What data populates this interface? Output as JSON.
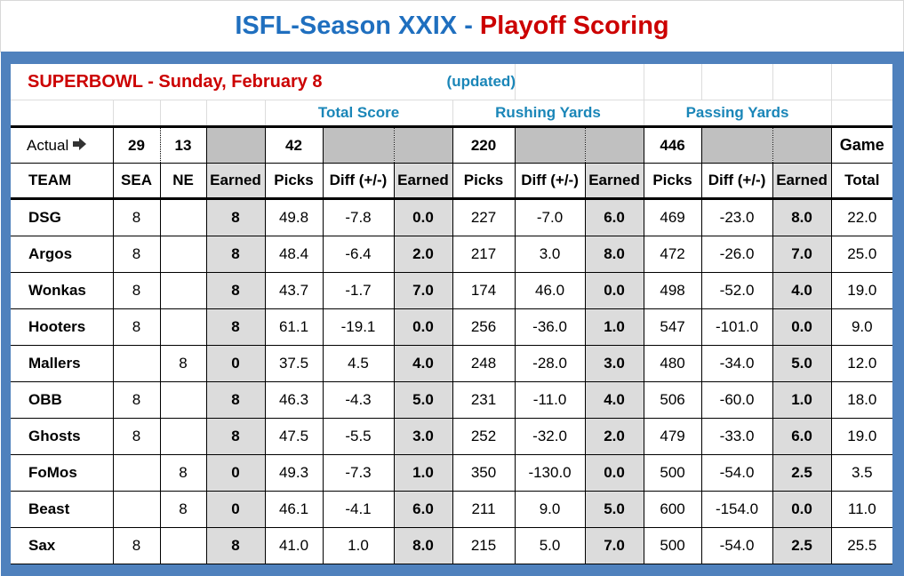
{
  "title": {
    "part1": "ISFL-Season XXIX - ",
    "part2": "Playoff Scoring"
  },
  "superbowl": "SUPERBOWL - Sunday, February 8",
  "updated": "(updated)",
  "groups": {
    "total_score": "Total Score",
    "rushing": "Rushing Yards",
    "passing": "Passing Yards"
  },
  "actual": {
    "label": "Actual",
    "sea": "29",
    "ne": "13",
    "total": "42",
    "rushing": "220",
    "passing": "446",
    "game": "Game"
  },
  "headers": [
    "TEAM",
    "SEA",
    "NE",
    "Earned",
    "Picks",
    "Diff (+/-)",
    "Earned",
    "Picks",
    "Diff (+/-)",
    "Earned",
    "Picks",
    "Diff (+/-)",
    "Earned",
    "Total"
  ],
  "rows": [
    [
      "DSG",
      "8",
      "",
      "8",
      "49.8",
      "-7.8",
      "0.0",
      "227",
      "-7.0",
      "6.0",
      "469",
      "-23.0",
      "8.0",
      "22.0"
    ],
    [
      "Argos",
      "8",
      "",
      "8",
      "48.4",
      "-6.4",
      "2.0",
      "217",
      "3.0",
      "8.0",
      "472",
      "-26.0",
      "7.0",
      "25.0"
    ],
    [
      "Wonkas",
      "8",
      "",
      "8",
      "43.7",
      "-1.7",
      "7.0",
      "174",
      "46.0",
      "0.0",
      "498",
      "-52.0",
      "4.0",
      "19.0"
    ],
    [
      "Hooters",
      "8",
      "",
      "8",
      "61.1",
      "-19.1",
      "0.0",
      "256",
      "-36.0",
      "1.0",
      "547",
      "-101.0",
      "0.0",
      "9.0"
    ],
    [
      "Mallers",
      "",
      "8",
      "0",
      "37.5",
      "4.5",
      "4.0",
      "248",
      "-28.0",
      "3.0",
      "480",
      "-34.0",
      "5.0",
      "12.0"
    ],
    [
      "OBB",
      "8",
      "",
      "8",
      "46.3",
      "-4.3",
      "5.0",
      "231",
      "-11.0",
      "4.0",
      "506",
      "-60.0",
      "1.0",
      "18.0"
    ],
    [
      "Ghosts",
      "8",
      "",
      "8",
      "47.5",
      "-5.5",
      "3.0",
      "252",
      "-32.0",
      "2.0",
      "479",
      "-33.0",
      "6.0",
      "19.0"
    ],
    [
      "FoMos",
      "",
      "8",
      "0",
      "49.3",
      "-7.3",
      "1.0",
      "350",
      "-130.0",
      "0.0",
      "500",
      "-54.0",
      "2.5",
      "3.5"
    ],
    [
      "Beast",
      "",
      "8",
      "0",
      "46.1",
      "-4.1",
      "6.0",
      "211",
      "9.0",
      "5.0",
      "600",
      "-154.0",
      "0.0",
      "11.0"
    ],
    [
      "Sax",
      "8",
      "",
      "8",
      "41.0",
      "1.0",
      "8.0",
      "215",
      "5.0",
      "7.0",
      "500",
      "-54.0",
      "2.5",
      "25.5"
    ]
  ],
  "colors": {
    "frame": "#4f81bd",
    "title_blue": "#1f6fbf",
    "title_red": "#cc0000",
    "group_header": "#1a86b8"
  }
}
